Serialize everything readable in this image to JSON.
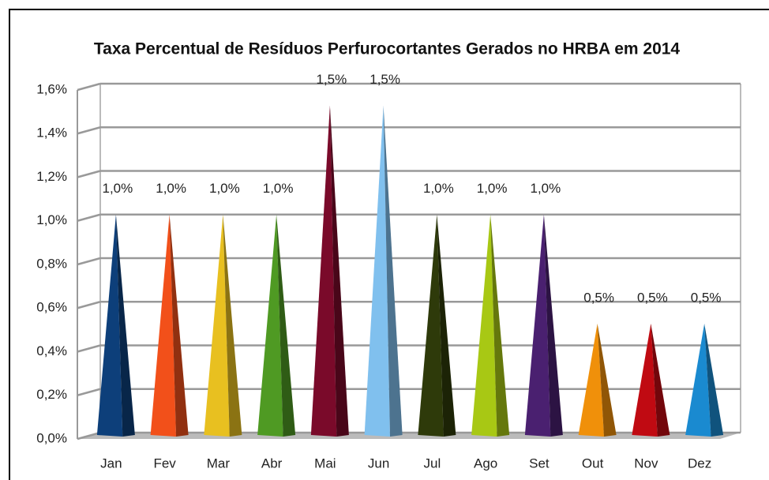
{
  "chart_data": {
    "type": "cone",
    "title": "Taxa Percentual de Resíduos Perfurocortantes Gerados no HRBA em 2014",
    "categories": [
      "Jan",
      "Fev",
      "Mar",
      "Abr",
      "Mai",
      "Jun",
      "Jul",
      "Ago",
      "Set",
      "Out",
      "Nov",
      "Dez"
    ],
    "values": [
      1.0,
      1.0,
      1.0,
      1.0,
      1.5,
      1.5,
      1.0,
      1.0,
      1.0,
      0.5,
      0.5,
      0.5
    ],
    "value_labels": [
      "1,0%",
      "1,0%",
      "1,0%",
      "1,0%",
      "1,5%",
      "1,5%",
      "1,0%",
      "1,0%",
      "1,0%",
      "0,5%",
      "0,5%",
      "0,5%"
    ],
    "colors": [
      "#0d3f7a",
      "#f2501a",
      "#e8c020",
      "#4f9a23",
      "#7a0a2a",
      "#80c0ee",
      "#2e3a0a",
      "#a8c814",
      "#4a2070",
      "#f0900a",
      "#c00a12",
      "#1a8ad0"
    ],
    "ylim": [
      0,
      1.6
    ],
    "yticks": [
      {
        "value": 0,
        "label": "0,0%"
      },
      {
        "value": 0.2,
        "label": "0,2%"
      },
      {
        "value": 0.4,
        "label": "0,4%"
      },
      {
        "value": 0.6,
        "label": "0,6%"
      },
      {
        "value": 0.8,
        "label": "0,8%"
      },
      {
        "value": 1.0,
        "label": "1,0%"
      },
      {
        "value": 1.2,
        "label": "1,2%"
      },
      {
        "value": 1.4,
        "label": "1,4%"
      },
      {
        "value": 1.6,
        "label": "1,6%"
      }
    ],
    "grid": true
  }
}
